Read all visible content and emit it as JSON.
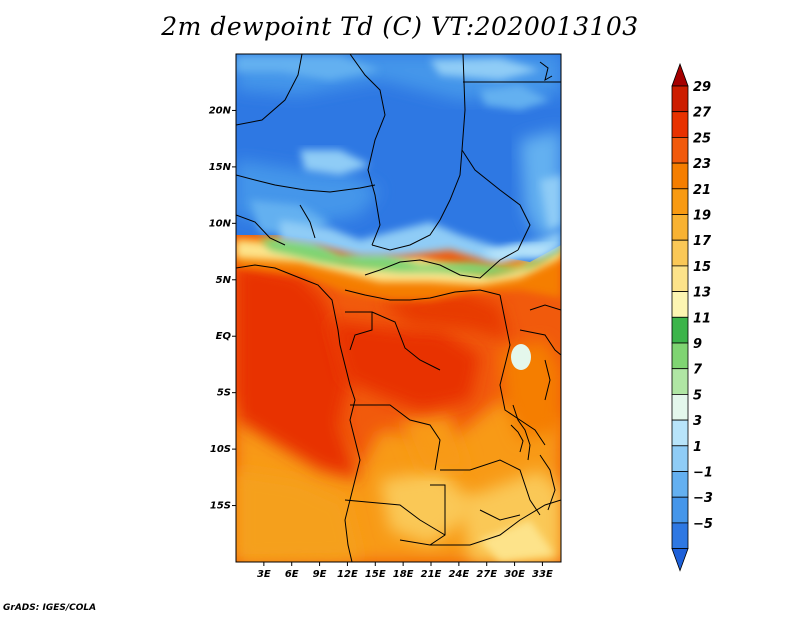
{
  "title": "2m dewpoint Td (C) VT:2020013103",
  "credit": "GrADS: IGES/COLA",
  "map": {
    "lon_range": [
      0,
      35
    ],
    "lat_range": [
      -20,
      25
    ],
    "x_ticks": [
      "3E",
      "6E",
      "9E",
      "12E",
      "15E",
      "18E",
      "21E",
      "24E",
      "27E",
      "30E",
      "33E"
    ],
    "x_tick_values": [
      3,
      6,
      9,
      12,
      15,
      18,
      21,
      24,
      27,
      30,
      33
    ],
    "y_ticks": [
      "20N",
      "15N",
      "10N",
      "5N",
      "EQ",
      "5S",
      "10S",
      "15S"
    ],
    "y_tick_values": [
      20,
      15,
      10,
      5,
      0,
      -5,
      -10,
      -15
    ],
    "field": "2m dewpoint",
    "units": "C"
  },
  "colorbar": {
    "labels": [
      "29",
      "27",
      "25",
      "23",
      "21",
      "19",
      "17",
      "15",
      "13",
      "11",
      "9",
      "7",
      "5",
      "3",
      "1",
      "−1",
      "−3",
      "−5"
    ],
    "colors": [
      "#a50000",
      "#cc1d00",
      "#e83200",
      "#f15a0c",
      "#f57e00",
      "#f89a12",
      "#f8b232",
      "#fac857",
      "#fde38a",
      "#fdf5b2",
      "#3cb44a",
      "#7fd472",
      "#b0e6a4",
      "#e4f7ec",
      "#b8e4fa",
      "#8fccf6",
      "#64b0f0",
      "#4596ea",
      "#2e78e3",
      "#1d60d9"
    ]
  }
}
